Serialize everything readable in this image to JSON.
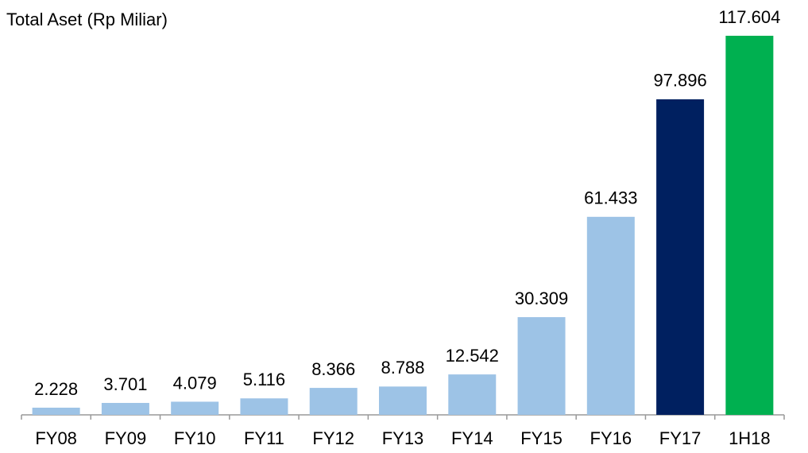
{
  "chart_data": {
    "type": "bar",
    "title": "Total Aset (Rp Miliar)",
    "categories": [
      "FY08",
      "FY09",
      "FY10",
      "FY11",
      "FY12",
      "FY13",
      "FY14",
      "FY15",
      "FY16",
      "FY17",
      "1H18"
    ],
    "values": [
      2228,
      3701,
      4079,
      5116,
      8366,
      8788,
      12542,
      30309,
      61433,
      97896,
      117604
    ],
    "value_labels": [
      "2.228",
      "3.701",
      "4.079",
      "5.116",
      "8.366",
      "8.788",
      "12.542",
      "30.309",
      "61.433",
      "97.896",
      "117.604"
    ],
    "colors": [
      "#9dc3e6",
      "#9dc3e6",
      "#9dc3e6",
      "#9dc3e6",
      "#9dc3e6",
      "#9dc3e6",
      "#9dc3e6",
      "#9dc3e6",
      "#9dc3e6",
      "#002060",
      "#00b050"
    ]
  }
}
